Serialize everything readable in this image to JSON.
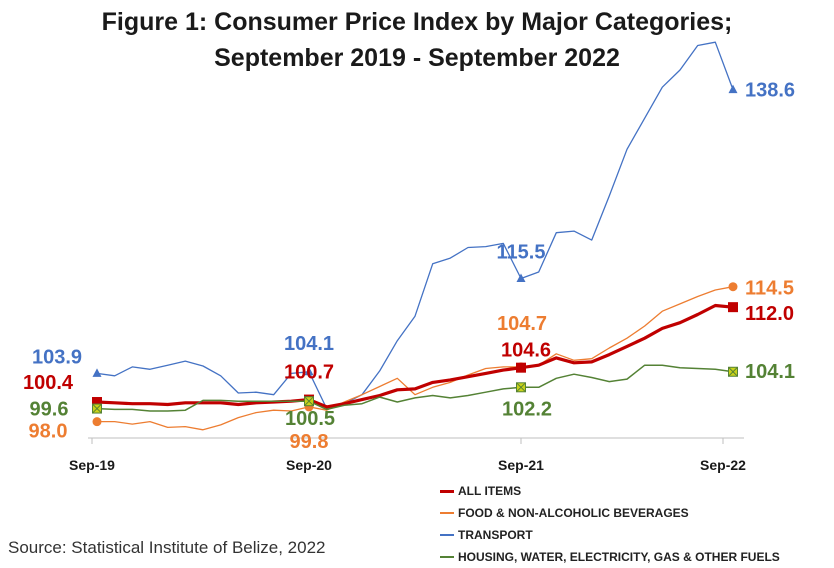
{
  "title_line1": "Figure 1: Consumer Price Index by Major Categories;",
  "title_line2": "September 2019 - September 2022",
  "source": "Source: Statistical Institute of Belize, 2022",
  "colors": {
    "all_items": "#c00000",
    "food": "#ed7d31",
    "transport": "#4472c4",
    "housing": "#548235",
    "axis": "#bfbfbf"
  },
  "chart_data": {
    "type": "line",
    "x_tick_labels": [
      "Sep-19",
      "Sep-20",
      "Sep-21",
      "Sep-22"
    ],
    "x_tick_index": [
      0,
      12,
      24,
      36
    ],
    "ylim": [
      96,
      141
    ],
    "grid": false,
    "legend_position": "bottom-right",
    "series": [
      {
        "key": "transport",
        "name": "TRANSPORT",
        "values": [
          103.9,
          103.6,
          104.7,
          104.4,
          104.9,
          105.4,
          104.8,
          103.6,
          101.5,
          101.6,
          101.3,
          103.9,
          104.1,
          99.6,
          100.2,
          101.3,
          104.2,
          107.9,
          110.9,
          117.3,
          118.0,
          119.3,
          119.4,
          119.8,
          115.5,
          116.3,
          121.1,
          121.3,
          120.2,
          125.6,
          131.3,
          135.1,
          138.9,
          141.0,
          144.0,
          144.4,
          138.6
        ],
        "labels": [
          {
            "index": 0,
            "text": "103.9"
          },
          {
            "index": 12,
            "text": "104.1"
          },
          {
            "index": 24,
            "text": "115.5"
          },
          {
            "index": 36,
            "text": "138.6"
          }
        ]
      },
      {
        "key": "food",
        "name": "FOOD & NON-ALCOHOLIC BEVERAGES",
        "values": [
          98.0,
          98.0,
          97.7,
          98.0,
          97.3,
          97.4,
          97.0,
          97.6,
          98.5,
          99.1,
          99.4,
          99.3,
          99.8,
          99.4,
          100.4,
          101.3,
          102.3,
          103.3,
          101.3,
          102.2,
          102.8,
          103.7,
          104.5,
          104.7,
          104.7,
          104.9,
          106.3,
          105.5,
          105.7,
          107.0,
          108.2,
          109.7,
          111.5,
          112.4,
          113.3,
          114.1,
          114.5
        ]
      },
      {
        "key": "all_items",
        "name": "ALL ITEMS",
        "values": [
          100.4,
          100.3,
          100.2,
          100.2,
          100.1,
          100.3,
          100.3,
          100.3,
          100.1,
          100.3,
          100.4,
          100.5,
          100.7,
          99.8,
          100.2,
          100.7,
          101.2,
          101.9,
          102.0,
          102.8,
          103.1,
          103.5,
          103.9,
          104.3,
          104.6,
          104.9,
          105.8,
          105.2,
          105.3,
          106.2,
          107.2,
          108.2,
          109.4,
          110.1,
          111.1,
          112.2,
          112.0
        ]
      },
      {
        "key": "housing",
        "name": "HOUSING, WATER, ELECTRICITY, GAS & OTHER FUELS",
        "values": [
          99.6,
          99.5,
          99.5,
          99.3,
          99.3,
          99.4,
          100.6,
          100.6,
          100.5,
          100.5,
          100.5,
          100.5,
          100.5,
          99.5,
          100.0,
          100.2,
          101.0,
          100.4,
          100.9,
          101.2,
          100.9,
          101.2,
          101.6,
          102.0,
          102.2,
          102.2,
          103.3,
          103.8,
          103.4,
          102.9,
          103.2,
          104.9,
          104.9,
          104.6,
          104.5,
          104.4,
          104.1
        ],
        "labels": [
          {
            "index": 0,
            "text": "99.6"
          },
          {
            "index": 12,
            "text": "100.5"
          },
          {
            "index": 24,
            "text": "102.2"
          },
          {
            "index": 36,
            "text": "104.1"
          }
        ]
      }
    ],
    "point_labels": {
      "all_items": [
        {
          "index": 0,
          "text": "100.4"
        },
        {
          "index": 12,
          "text": "100.7"
        },
        {
          "index": 24,
          "text": "104.6"
        },
        {
          "index": 36,
          "text": "112.0"
        }
      ],
      "food": [
        {
          "index": 0,
          "text": "98.0"
        },
        {
          "index": 12,
          "text": "99.8"
        },
        {
          "index": 24,
          "text": "104.7"
        },
        {
          "index": 36,
          "text": "114.5"
        }
      ]
    },
    "legend": [
      {
        "key": "all_items",
        "label": "ALL ITEMS"
      },
      {
        "key": "food",
        "label": "FOOD & NON-ALCOHOLIC BEVERAGES"
      },
      {
        "key": "transport",
        "label": "TRANSPORT"
      },
      {
        "key": "housing",
        "label": "HOUSING, WATER, ELECTRICITY, GAS & OTHER FUELS"
      }
    ]
  }
}
